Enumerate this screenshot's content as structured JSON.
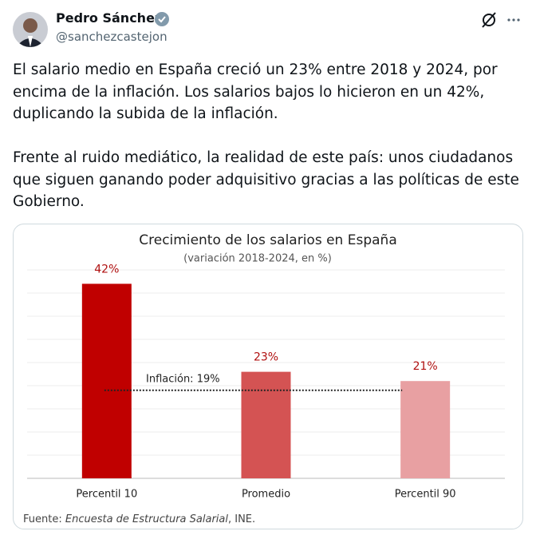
{
  "author": {
    "name": "Pedro Sánchez",
    "handle": "@sanchezcastejon"
  },
  "text": [
    "El salario medio en España creció un 23% entre 2018 y 2024, por encima de la inflación. Los salarios bajos lo hicieron en un 42%, duplicando la subida de la inflación.",
    "Frente al ruido mediático, la realidad de este país: unos ciudadanos que siguen ganando poder adquisitivo gracias a las políticas de este Gobierno."
  ],
  "chart_data": {
    "type": "bar",
    "title": "Crecimiento de los salarios en España",
    "subtitle": "(variación 2018-2024, en %)",
    "categories": [
      "Percentil 10",
      "Promedio",
      "Percentil 90"
    ],
    "values": [
      42,
      23,
      21
    ],
    "value_labels": [
      "42%",
      "23%",
      "21%"
    ],
    "colors": [
      "#c00000",
      "#d45353",
      "#e8a0a2"
    ],
    "ylim": [
      0,
      45
    ],
    "yticks": [
      5,
      10,
      15,
      20,
      25,
      30,
      35,
      40,
      45
    ],
    "grid": true,
    "reference": {
      "value": 19,
      "label": "Inflación: 19%"
    },
    "source": [
      "Fuente: ",
      "Encuesta de Estructura Salarial",
      ", INE."
    ]
  }
}
